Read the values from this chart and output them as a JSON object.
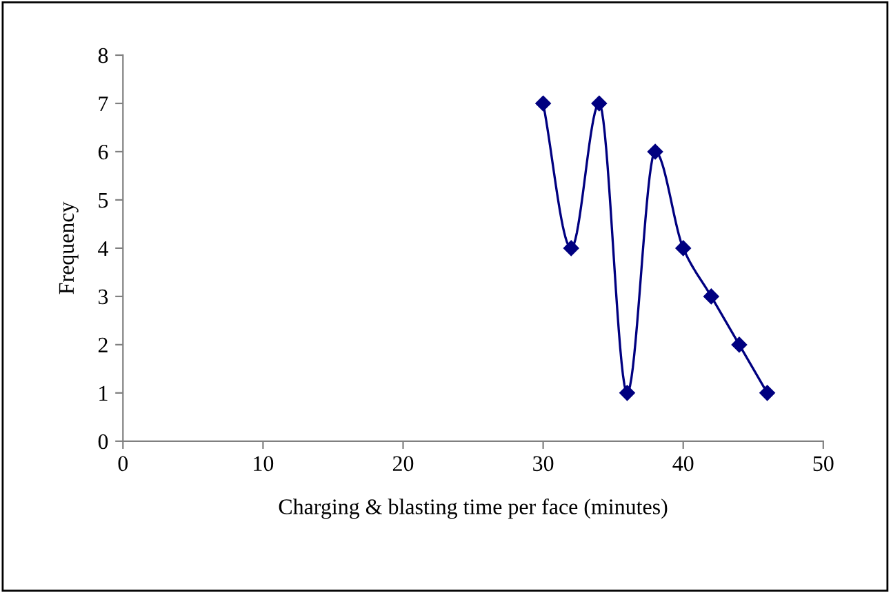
{
  "chart_data": {
    "type": "line",
    "xlabel": "Charging & blasting time per face (minutes)",
    "ylabel": "Frequency",
    "x": [
      30,
      32,
      34,
      36,
      38,
      40,
      42,
      44,
      46
    ],
    "values": [
      7,
      4,
      7,
      1,
      6,
      4,
      3,
      2,
      1
    ],
    "color": "#000080",
    "marker": "diamond",
    "line_style": "solid",
    "xlim": [
      0,
      50
    ],
    "xticks": [
      0,
      10,
      20,
      30,
      40,
      50
    ],
    "ylim": [
      0,
      8
    ],
    "yticks": [
      0,
      1,
      2,
      3,
      4,
      5,
      6,
      7,
      8
    ],
    "grid": false,
    "legend": false
  }
}
